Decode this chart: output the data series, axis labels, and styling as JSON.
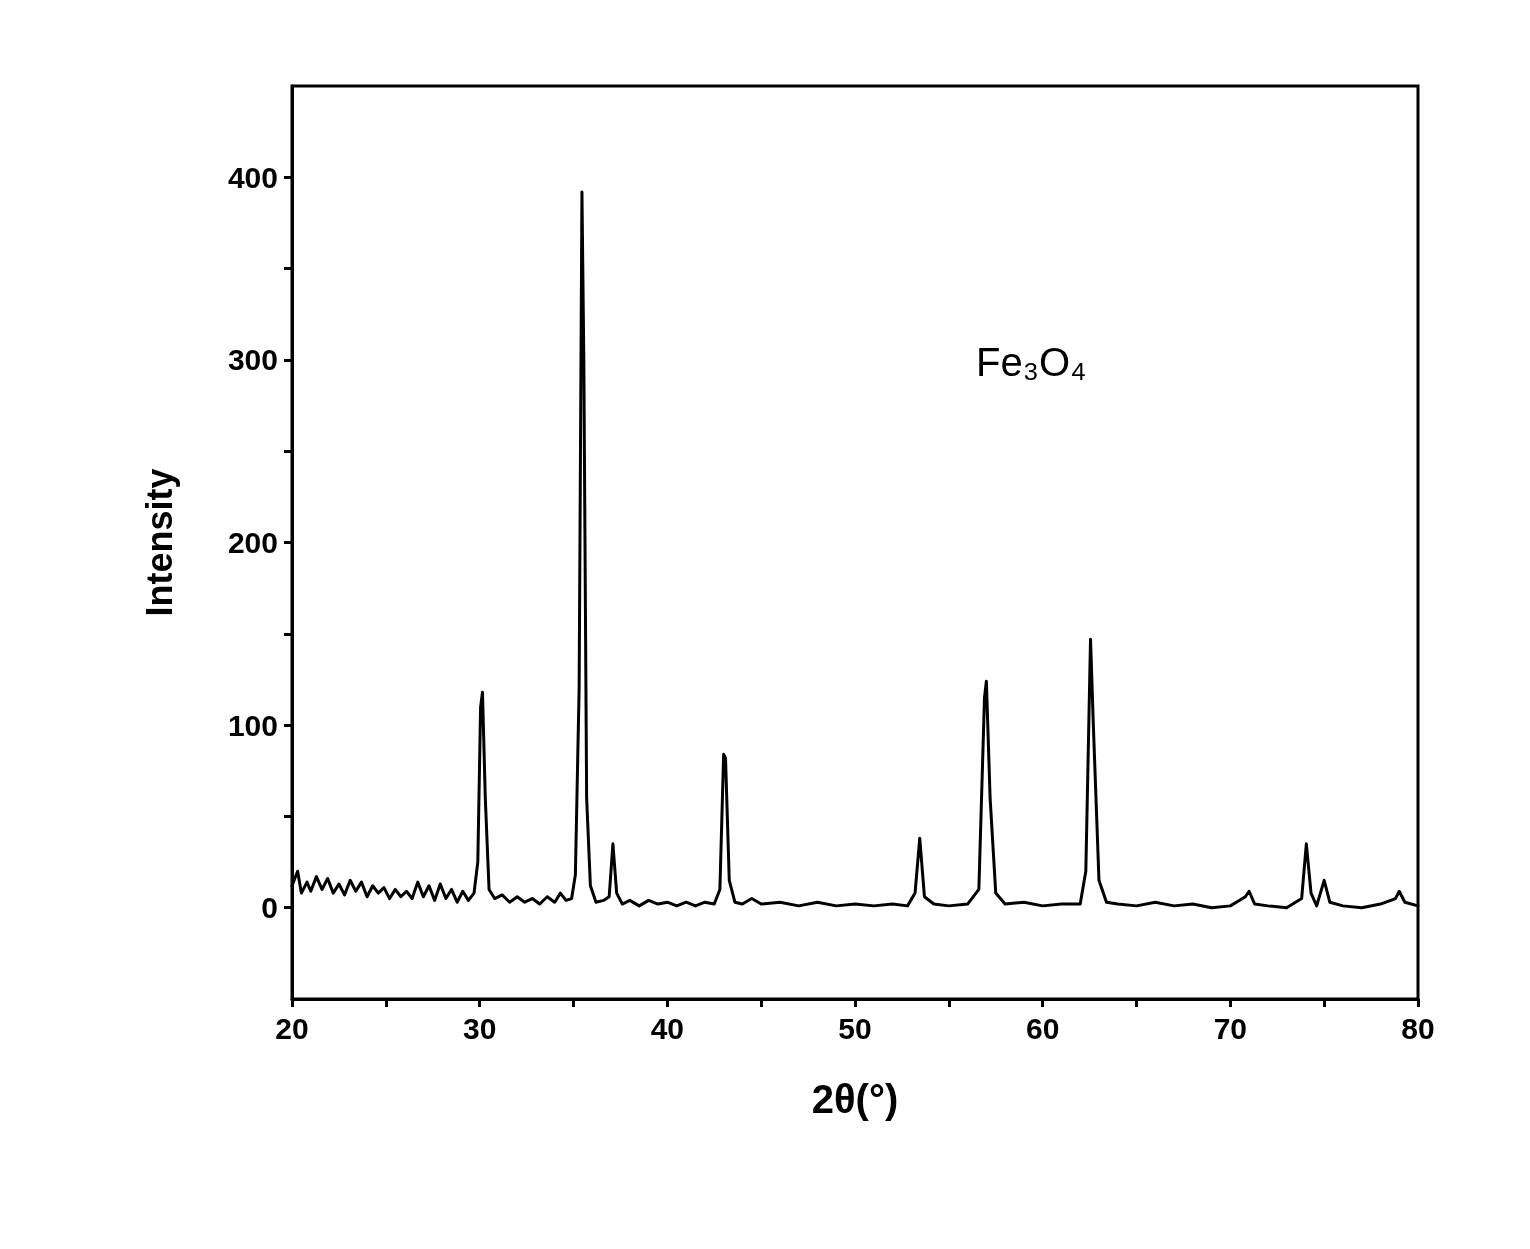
{
  "chart_data": {
    "type": "line",
    "xlabel": "2θ(°)",
    "ylabel": "Intensity",
    "annotations": [
      "Fe₃O₄"
    ],
    "xlim": [
      20,
      80
    ],
    "ylim": [
      -50,
      450
    ],
    "xticks": [
      20,
      {
        "value": 25,
        "label": null
      },
      30,
      {
        "value": 35,
        "label": null
      },
      40,
      {
        "value": 45,
        "label": null
      },
      50,
      {
        "value": 55,
        "label": null
      },
      60,
      {
        "value": 65,
        "label": null
      },
      70,
      {
        "value": 75,
        "label": null
      },
      80
    ],
    "yticks": [
      0,
      {
        "value": 50,
        "label": null
      },
      100,
      {
        "value": 150,
        "label": null
      },
      200,
      {
        "value": 250,
        "label": null
      },
      300,
      {
        "value": 350,
        "label": null
      },
      400
    ],
    "grid": false,
    "marker": "none",
    "line_style": "solid",
    "series": [
      {
        "color": "#000000",
        "x": [
          20,
          20.3,
          20.5,
          20.8,
          21.0,
          21.3,
          21.6,
          21.9,
          22.2,
          22.5,
          22.8,
          23.1,
          23.4,
          23.7,
          24.0,
          24.3,
          24.6,
          24.9,
          25.2,
          25.5,
          25.8,
          26.1,
          26.4,
          26.7,
          27.0,
          27.3,
          27.6,
          27.9,
          28.2,
          28.5,
          28.8,
          29.1,
          29.4,
          29.7,
          29.9,
          30.05,
          30.15,
          30.3,
          30.5,
          30.8,
          31.2,
          31.6,
          32.0,
          32.4,
          32.8,
          33.2,
          33.6,
          34.0,
          34.3,
          34.6,
          34.9,
          35.1,
          35.3,
          35.45,
          35.55,
          35.7,
          35.9,
          36.2,
          36.6,
          36.9,
          37.1,
          37.3,
          37.6,
          38.0,
          38.5,
          39.0,
          39.5,
          40.0,
          40.5,
          41.0,
          41.5,
          42.0,
          42.5,
          42.8,
          43.0,
          43.1,
          43.3,
          43.6,
          44.0,
          44.5,
          45,
          46,
          47,
          48,
          49,
          50,
          51,
          52,
          52.8,
          53.2,
          53.45,
          53.7,
          54.2,
          55,
          56,
          56.6,
          56.9,
          57.0,
          57.2,
          57.5,
          58,
          59,
          60,
          61,
          62,
          62.3,
          62.55,
          62.7,
          63.0,
          63.4,
          64,
          65,
          66,
          67,
          68,
          69,
          70,
          70.8,
          71.0,
          71.3,
          72,
          73,
          73.8,
          74.05,
          74.3,
          74.6,
          75.0,
          75.3,
          76,
          77,
          78,
          78.8,
          79.0,
          79.3,
          80
        ],
        "values": [
          12,
          20,
          8,
          14,
          9,
          17,
          10,
          16,
          8,
          13,
          7,
          15,
          9,
          14,
          6,
          12,
          8,
          11,
          5,
          10,
          6,
          9,
          5,
          14,
          6,
          12,
          4,
          13,
          5,
          10,
          3,
          9,
          4,
          8,
          25,
          110,
          118,
          60,
          10,
          5,
          7,
          3,
          6,
          3,
          5,
          2,
          6,
          3,
          8,
          4,
          5,
          18,
          120,
          392,
          300,
          60,
          12,
          3,
          4,
          6,
          35,
          8,
          2,
          4,
          1,
          4,
          2,
          3,
          1,
          3,
          1,
          3,
          2,
          10,
          84,
          82,
          15,
          3,
          2,
          5,
          2,
          3,
          1,
          3,
          1,
          2,
          1,
          2,
          1,
          8,
          38,
          6,
          2,
          1,
          2,
          10,
          115,
          124,
          60,
          8,
          2,
          3,
          1,
          2,
          2,
          20,
          147,
          100,
          15,
          3,
          2,
          1,
          3,
          1,
          2,
          0,
          1,
          6,
          9,
          2,
          1,
          0,
          5,
          35,
          8,
          1,
          15,
          3,
          1,
          0,
          2,
          5,
          9,
          3,
          1
        ]
      }
    ]
  }
}
